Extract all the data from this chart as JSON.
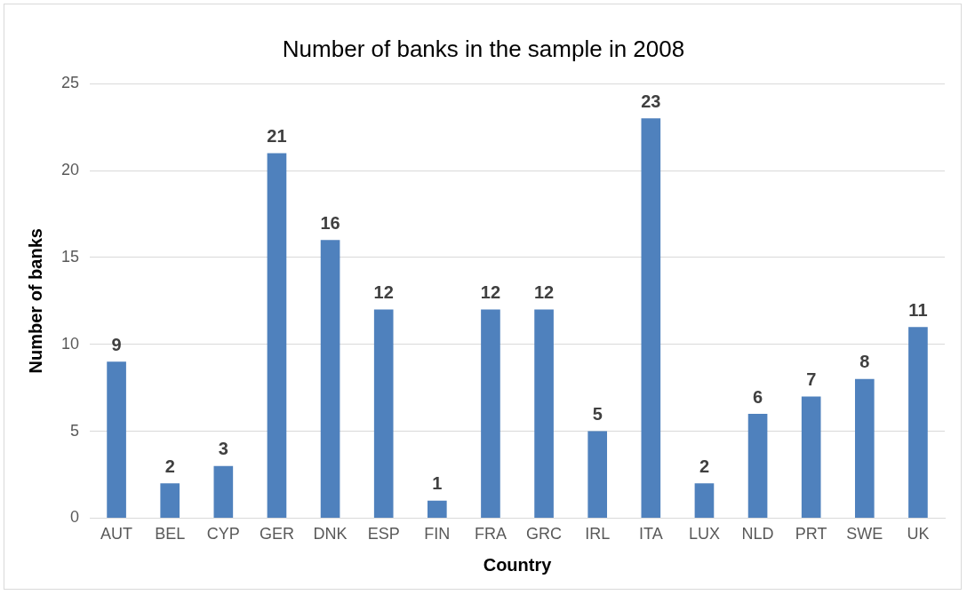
{
  "chart_data": {
    "type": "bar",
    "title": "Number of banks in the sample in 2008",
    "xlabel": "Country",
    "ylabel": "Number of banks",
    "categories": [
      "AUT",
      "BEL",
      "CYP",
      "GER",
      "DNK",
      "ESP",
      "FIN",
      "FRA",
      "GRC",
      "IRL",
      "ITA",
      "LUX",
      "NLD",
      "PRT",
      "SWE",
      "UK"
    ],
    "values": [
      9,
      2,
      3,
      21,
      16,
      12,
      1,
      12,
      12,
      5,
      23,
      2,
      6,
      7,
      8,
      11
    ],
    "color": "#4f81bd",
    "ylim": [
      0,
      25
    ],
    "yticks": [
      0,
      5,
      10,
      15,
      20,
      25
    ],
    "grid": "y",
    "legend": false,
    "data_labels": true
  }
}
